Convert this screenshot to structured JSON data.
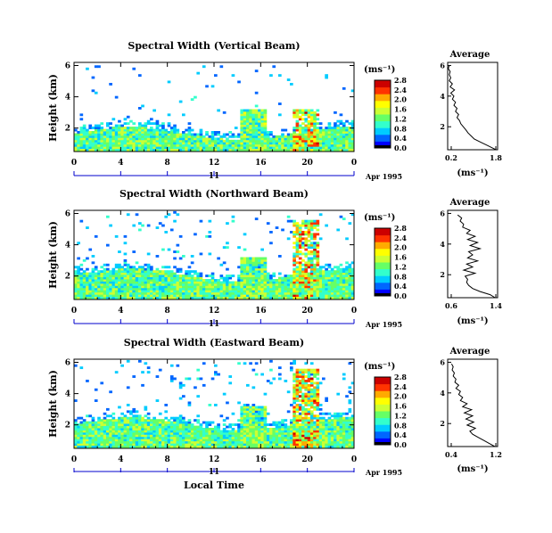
{
  "chart_data": [
    {
      "type": "heatmap",
      "title": "Spectral Width (Vertical Beam)",
      "ylabel": "Height (km)",
      "x_ticks": [
        "0",
        "4",
        "8",
        "12",
        "16",
        "20",
        "0"
      ],
      "y_ticks": [
        "2",
        "4",
        "6"
      ],
      "xlim": [
        0,
        24
      ],
      "ylim": [
        0.5,
        6.2
      ],
      "date_day": "11",
      "date_label": "Apr 1995",
      "colorbar": {
        "unit": "(ms⁻¹)",
        "ticks": [
          "0.0",
          "0.4",
          "0.8",
          "1.2",
          "1.6",
          "2.0",
          "2.4",
          "2.8"
        ],
        "range": [
          0,
          3.0
        ]
      }
    },
    {
      "type": "heatmap",
      "title": "Spectral Width (Northward Beam)",
      "ylabel": "Height (km)",
      "x_ticks": [
        "0",
        "4",
        "8",
        "12",
        "16",
        "20",
        "0"
      ],
      "y_ticks": [
        "2",
        "4",
        "6"
      ],
      "xlim": [
        0,
        24
      ],
      "ylim": [
        0.5,
        6.2
      ],
      "date_day": "11",
      "date_label": "Apr 1995",
      "colorbar": {
        "unit": "(ms⁻¹)",
        "ticks": [
          "0.0",
          "0.4",
          "0.8",
          "1.2",
          "1.6",
          "2.0",
          "2.4",
          "2.8"
        ],
        "range": [
          0,
          3.0
        ]
      }
    },
    {
      "type": "heatmap",
      "title": "Spectral Width (Eastward Beam)",
      "ylabel": "Height (km)",
      "x_ticks": [
        "0",
        "4",
        "8",
        "12",
        "16",
        "20",
        "0"
      ],
      "y_ticks": [
        "2",
        "4",
        "6"
      ],
      "xlim": [
        0,
        24
      ],
      "ylim": [
        0.5,
        6.2
      ],
      "date_day": "11",
      "date_label": "Apr 1995",
      "xlabel": "Local Time",
      "colorbar": {
        "unit": "(ms⁻¹)",
        "ticks": [
          "0.0",
          "0.4",
          "0.8",
          "1.2",
          "1.6",
          "2.0",
          "2.4",
          "2.8"
        ],
        "range": [
          0,
          3.0
        ]
      }
    },
    {
      "type": "line",
      "title": "Average",
      "xlabel": "(ms⁻¹)",
      "x_ticks": [
        "0.2",
        "1.8"
      ],
      "y_ticks": [
        "2",
        "4",
        "6"
      ],
      "xlim": [
        0.2,
        1.8
      ],
      "ylim": [
        0.5,
        6.2
      ],
      "profile": {
        "height": [
          0.5,
          0.6,
          0.8,
          1.0,
          1.2,
          1.4,
          1.6,
          1.8,
          2.0,
          2.2,
          2.4,
          2.6,
          2.8,
          3.0,
          3.2,
          3.4,
          3.6,
          3.8,
          4.0,
          4.2,
          4.4,
          4.6,
          4.8,
          5.0,
          5.2,
          5.4,
          5.6,
          5.8,
          6.0
        ],
        "width": [
          1.75,
          1.65,
          1.45,
          1.25,
          1.05,
          0.95,
          0.85,
          0.78,
          0.7,
          0.62,
          0.58,
          0.5,
          0.55,
          0.45,
          0.5,
          0.4,
          0.45,
          0.35,
          0.4,
          0.3,
          0.42,
          0.28,
          0.35,
          0.25,
          0.3,
          0.25,
          0.28,
          0.22,
          0.25
        ]
      }
    },
    {
      "type": "line",
      "title": "Average",
      "xlabel": "(ms⁻¹)",
      "x_ticks": [
        "0.6",
        "1.4"
      ],
      "y_ticks": [
        "2",
        "4",
        "6"
      ],
      "xlim": [
        0.4,
        1.4
      ],
      "ylim": [
        0.5,
        6.2
      ],
      "profile": {
        "height": [
          0.5,
          0.7,
          0.9,
          1.1,
          1.3,
          1.5,
          1.7,
          1.9,
          2.1,
          2.3,
          2.5,
          2.7,
          2.9,
          3.1,
          3.3,
          3.5,
          3.7,
          3.9,
          4.1,
          4.3,
          4.5,
          4.7,
          4.9,
          5.1,
          5.3,
          5.5,
          5.7,
          5.9
        ],
        "width": [
          1.35,
          1.25,
          1.05,
          0.9,
          0.82,
          0.78,
          0.8,
          0.75,
          0.95,
          0.72,
          0.9,
          0.78,
          1.0,
          0.8,
          0.9,
          0.82,
          1.05,
          0.85,
          1.0,
          0.8,
          0.95,
          0.78,
          0.85,
          0.7,
          0.72,
          0.65,
          0.68,
          0.6
        ]
      }
    },
    {
      "type": "line",
      "title": "Average",
      "xlabel": "(ms⁻¹)",
      "x_ticks": [
        "0.4",
        "1.2"
      ],
      "y_ticks": [
        "2",
        "4",
        "6"
      ],
      "xlim": [
        0.35,
        1.25
      ],
      "ylim": [
        0.5,
        6.2
      ],
      "profile": {
        "height": [
          0.5,
          0.7,
          0.9,
          1.1,
          1.3,
          1.5,
          1.7,
          1.9,
          2.1,
          2.3,
          2.5,
          2.7,
          2.9,
          3.1,
          3.3,
          3.5,
          3.7,
          3.9,
          4.1,
          4.3,
          4.5,
          4.7,
          4.9,
          5.1,
          5.3,
          5.5,
          5.7,
          5.9
        ],
        "width": [
          1.2,
          1.1,
          1.0,
          0.9,
          0.8,
          0.75,
          0.85,
          0.7,
          0.82,
          0.68,
          0.8,
          0.65,
          0.78,
          0.62,
          0.7,
          0.58,
          0.62,
          0.55,
          0.58,
          0.5,
          0.55,
          0.48,
          0.5,
          0.45,
          0.47,
          0.43,
          0.45,
          0.42
        ]
      }
    }
  ],
  "colors": {
    "scale": [
      "#000000",
      "#0000ff",
      "#0066ff",
      "#00ccff",
      "#33ffcc",
      "#66ff66",
      "#ccff33",
      "#ffff00",
      "#ffaa00",
      "#ff3300",
      "#cc0000"
    ]
  }
}
